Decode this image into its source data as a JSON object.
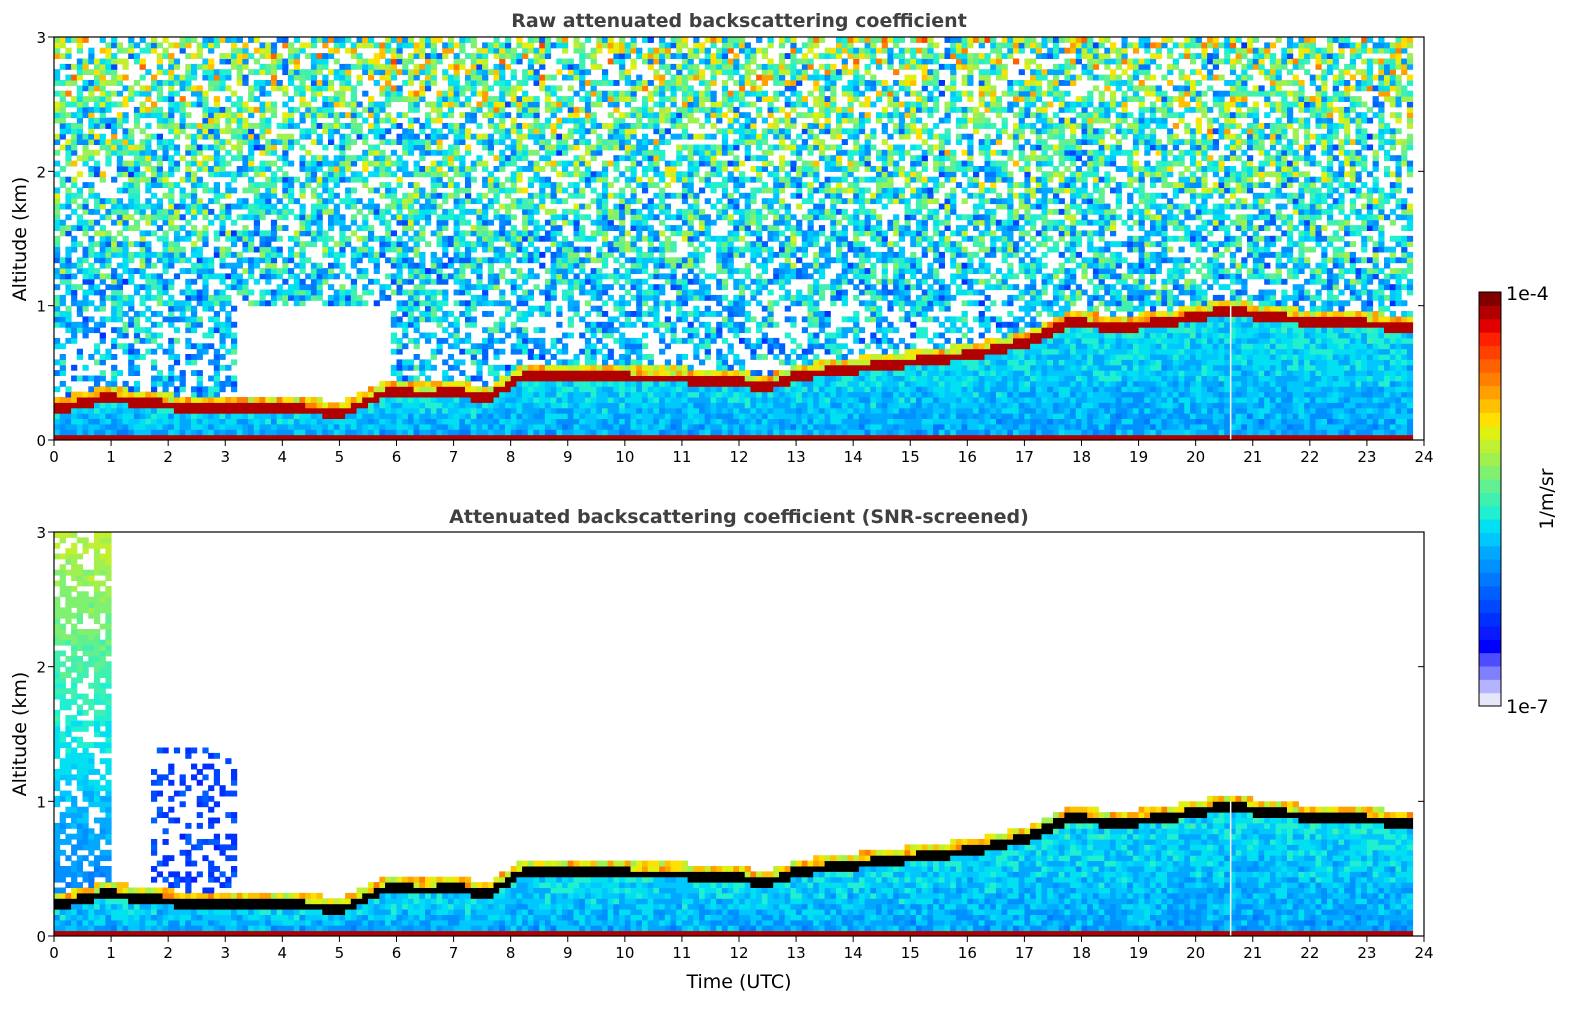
{
  "chart_data": [
    {
      "type": "heatmap",
      "title": "Raw attenuated backscattering coefficient",
      "xlabel": "",
      "ylabel": "Altitude (km)",
      "xlim": [
        0,
        24
      ],
      "ylim": [
        0,
        3
      ],
      "xticks": [
        "0",
        "1",
        "2",
        "3",
        "4",
        "5",
        "6",
        "7",
        "8",
        "9",
        "10",
        "11",
        "12",
        "13",
        "14",
        "15",
        "16",
        "17",
        "18",
        "19",
        "20",
        "21",
        "22",
        "23",
        "24"
      ],
      "yticks": [
        "0",
        "1",
        "2",
        "3"
      ],
      "data_end_time": 23.8,
      "layer_top_km": [
        {
          "t": 0,
          "h": 0.25
        },
        {
          "t": 0.8,
          "h": 0.33
        },
        {
          "t": 1.5,
          "h": 0.3
        },
        {
          "t": 2.5,
          "h": 0.25
        },
        {
          "t": 3.2,
          "h": 0.25
        },
        {
          "t": 4,
          "h": 0.25
        },
        {
          "t": 5,
          "h": 0.22
        },
        {
          "t": 5.8,
          "h": 0.38
        },
        {
          "t": 6.5,
          "h": 0.35
        },
        {
          "t": 7,
          "h": 0.38
        },
        {
          "t": 7.5,
          "h": 0.32
        },
        {
          "t": 8.2,
          "h": 0.5
        },
        {
          "t": 9,
          "h": 0.5
        },
        {
          "t": 10,
          "h": 0.48
        },
        {
          "t": 11,
          "h": 0.47
        },
        {
          "t": 12,
          "h": 0.45
        },
        {
          "t": 12.4,
          "h": 0.4
        },
        {
          "t": 13,
          "h": 0.5
        },
        {
          "t": 14,
          "h": 0.55
        },
        {
          "t": 15,
          "h": 0.6
        },
        {
          "t": 16,
          "h": 0.65
        },
        {
          "t": 17,
          "h": 0.75
        },
        {
          "t": 17.8,
          "h": 0.9
        },
        {
          "t": 18.5,
          "h": 0.85
        },
        {
          "t": 19.5,
          "h": 0.9
        },
        {
          "t": 20.5,
          "h": 0.98
        },
        {
          "t": 21,
          "h": 0.95
        },
        {
          "t": 22,
          "h": 0.9
        },
        {
          "t": 23,
          "h": 0.88
        },
        {
          "t": 23.8,
          "h": 0.85
        }
      ]
    },
    {
      "type": "heatmap",
      "title": "Attenuated backscattering coefficient (SNR-screened)",
      "xlabel": "Time (UTC)",
      "ylabel": "Altitude (km)",
      "xlim": [
        0,
        24
      ],
      "ylim": [
        0,
        3
      ],
      "xticks": [
        "0",
        "1",
        "2",
        "3",
        "4",
        "5",
        "6",
        "7",
        "8",
        "9",
        "10",
        "11",
        "12",
        "13",
        "14",
        "15",
        "16",
        "17",
        "18",
        "19",
        "20",
        "21",
        "22",
        "23",
        "24"
      ],
      "yticks": [
        "0",
        "1",
        "2",
        "3"
      ],
      "data_end_time": 23.8
    }
  ],
  "colorbar": {
    "label": "1/m/sr",
    "max_label": "1e-4",
    "min_label": "1e-7",
    "colors": [
      "#e6e6fa",
      "#b3b3ff",
      "#8080ff",
      "#4d4dff",
      "#0000ff",
      "#0a1aff",
      "#0030ff",
      "#0048ff",
      "#0060ff",
      "#0078ff",
      "#0090ff",
      "#00a8ff",
      "#00c8ff",
      "#00e0f0",
      "#20f0d0",
      "#40f0b0",
      "#60f090",
      "#80f070",
      "#a0f050",
      "#c0f030",
      "#e0f010",
      "#ffe000",
      "#ffc000",
      "#ffa000",
      "#ff8000",
      "#ff6000",
      "#ff4000",
      "#ff2000",
      "#e00000",
      "#b00000",
      "#800000"
    ]
  }
}
